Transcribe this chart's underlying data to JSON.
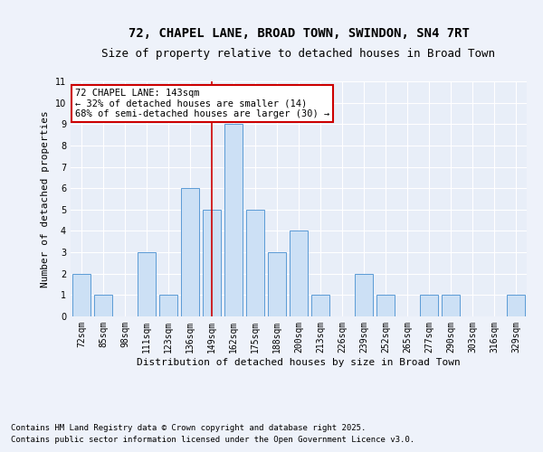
{
  "title_line1": "72, CHAPEL LANE, BROAD TOWN, SWINDON, SN4 7RT",
  "title_line2": "Size of property relative to detached houses in Broad Town",
  "xlabel": "Distribution of detached houses by size in Broad Town",
  "ylabel": "Number of detached properties",
  "categories": [
    "72sqm",
    "85sqm",
    "98sqm",
    "111sqm",
    "123sqm",
    "136sqm",
    "149sqm",
    "162sqm",
    "175sqm",
    "188sqm",
    "200sqm",
    "213sqm",
    "226sqm",
    "239sqm",
    "252sqm",
    "265sqm",
    "277sqm",
    "290sqm",
    "303sqm",
    "316sqm",
    "329sqm"
  ],
  "values": [
    2,
    1,
    0,
    3,
    1,
    6,
    5,
    9,
    5,
    3,
    4,
    1,
    0,
    2,
    1,
    0,
    1,
    1,
    0,
    0,
    1
  ],
  "highlight_index": 6,
  "bar_color": "#cce0f5",
  "bar_edgecolor": "#5b9bd5",
  "highlight_line_color": "#cc0000",
  "annotation_text": "72 CHAPEL LANE: 143sqm\n← 32% of detached houses are smaller (14)\n68% of semi-detached houses are larger (30) →",
  "annotation_box_edgecolor": "#cc0000",
  "annotation_box_facecolor": "#ffffff",
  "ylim": [
    0,
    11
  ],
  "yticks": [
    0,
    1,
    2,
    3,
    4,
    5,
    6,
    7,
    8,
    9,
    10,
    11
  ],
  "footnote_line1": "Contains HM Land Registry data © Crown copyright and database right 2025.",
  "footnote_line2": "Contains public sector information licensed under the Open Government Licence v3.0.",
  "bg_color": "#eef2fa",
  "plot_bg_color": "#e8eef8",
  "grid_color": "#ffffff",
  "title_fontsize": 10,
  "subtitle_fontsize": 9,
  "axis_label_fontsize": 8,
  "tick_fontsize": 7,
  "annotation_fontsize": 7.5,
  "footnote_fontsize": 6.5
}
